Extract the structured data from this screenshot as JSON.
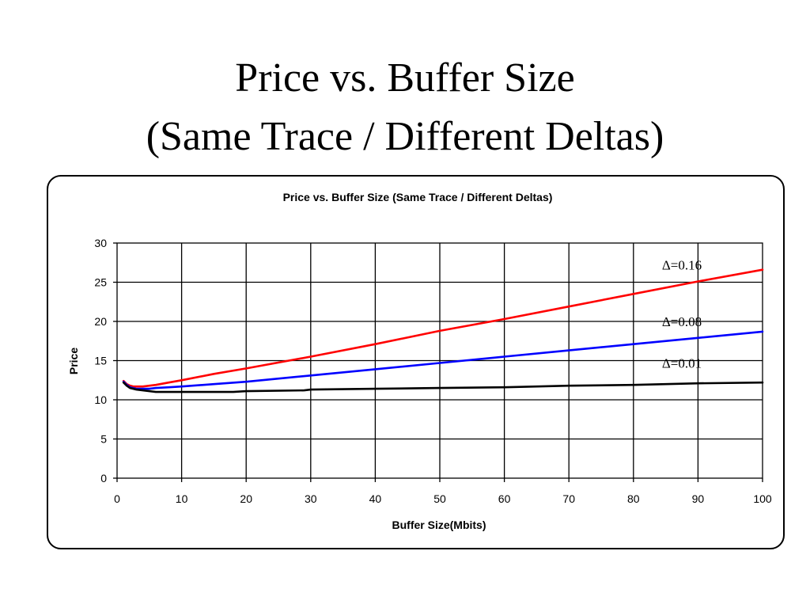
{
  "slide": {
    "title_line1": "Price vs. Buffer Size",
    "title_line2": "(Same Trace / Different Deltas)"
  },
  "chart_data": {
    "type": "line",
    "title": "Price vs. Buffer Size (Same Trace / Different Deltas)",
    "xlabel": "Buffer Size(Mbits)",
    "ylabel": "Price",
    "xlim": [
      0,
      100
    ],
    "ylim": [
      0,
      30
    ],
    "xticks": [
      0,
      10,
      20,
      30,
      40,
      50,
      60,
      70,
      80,
      90,
      100
    ],
    "yticks": [
      0,
      5,
      10,
      15,
      20,
      25,
      30
    ],
    "grid": true,
    "legend": "none",
    "series": [
      {
        "name": "Δ=0.16",
        "color": "#ff0000",
        "x": [
          1,
          1.5,
          2,
          2.5,
          3,
          4,
          5,
          6,
          8,
          10,
          15,
          20,
          30,
          40,
          50,
          60,
          70,
          80,
          90,
          100
        ],
        "y": [
          12.4,
          12.0,
          11.8,
          11.7,
          11.7,
          11.7,
          11.8,
          11.9,
          12.2,
          12.5,
          13.3,
          14.0,
          15.5,
          17.1,
          18.8,
          20.3,
          21.9,
          23.5,
          25.1,
          26.6
        ]
      },
      {
        "name": "Δ=0.08",
        "color": "#0000ff",
        "x": [
          1,
          1.5,
          2,
          2.5,
          3,
          4,
          5,
          6,
          8,
          10,
          15,
          20,
          30,
          40,
          50,
          60,
          70,
          80,
          90,
          100
        ],
        "y": [
          12.3,
          11.9,
          11.6,
          11.5,
          11.4,
          11.4,
          11.4,
          11.5,
          11.6,
          11.7,
          12.0,
          12.3,
          13.1,
          13.9,
          14.7,
          15.5,
          16.3,
          17.1,
          17.9,
          18.7
        ]
      },
      {
        "name": "Δ=0.01",
        "color": "#000000",
        "x": [
          1,
          1.5,
          2,
          2.5,
          3,
          4,
          5,
          6,
          10,
          18,
          20,
          29,
          30,
          40,
          50,
          60,
          70,
          80,
          90,
          100
        ],
        "y": [
          12.2,
          11.8,
          11.5,
          11.4,
          11.3,
          11.2,
          11.1,
          11.0,
          11.0,
          11.0,
          11.1,
          11.2,
          11.3,
          11.4,
          11.5,
          11.6,
          11.8,
          11.9,
          12.1,
          12.2
        ]
      }
    ],
    "annotations": [
      {
        "text": "Δ=0.16",
        "x": 87.5,
        "y": 26.6
      },
      {
        "text": "Δ=0.08",
        "x": 87.5,
        "y": 19.4
      },
      {
        "text": "Δ=0.01",
        "x": 87.5,
        "y": 14.1
      }
    ]
  }
}
